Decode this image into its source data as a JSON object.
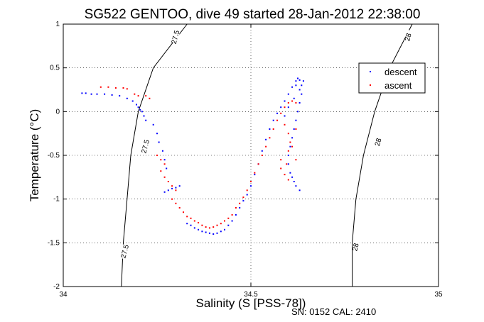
{
  "chart_data": {
    "type": "scatter",
    "title": "SG522 GENTOO, dive 49 started 28-Jan-2012 22:38:00",
    "xlabel": "Salinity (S [PSS-78])",
    "ylabel": "Temperature (°C)",
    "xlim": [
      34,
      35
    ],
    "ylim": [
      -2,
      1
    ],
    "xticks": [
      34,
      34.5,
      35
    ],
    "yticks": [
      -2,
      -1.5,
      -1,
      -0.5,
      0,
      0.5,
      1
    ],
    "grid": true,
    "legend_position": "top-right",
    "isopycnals": [
      {
        "label": "27.5",
        "points": [
          [
            34.33,
            1.0
          ],
          [
            34.24,
            0.5
          ],
          [
            34.2,
            0.0
          ],
          [
            34.18,
            -0.5
          ],
          [
            34.17,
            -1.0
          ],
          [
            34.16,
            -1.5
          ],
          [
            34.155,
            -2.0
          ]
        ]
      },
      {
        "label": "28",
        "points": [
          [
            34.93,
            1.0
          ],
          [
            34.87,
            0.5
          ],
          [
            34.83,
            0.0
          ],
          [
            34.8,
            -0.5
          ],
          [
            34.78,
            -1.0
          ],
          [
            34.77,
            -1.5
          ],
          [
            34.77,
            -2.0
          ]
        ]
      }
    ],
    "isopycnal_label_positions": [
      {
        "label": "27.5",
        "x": 34.3,
        "y": 0.85
      },
      {
        "label": "27.5",
        "x": 34.22,
        "y": -0.4
      },
      {
        "label": "27.5",
        "x": 34.165,
        "y": -1.6
      },
      {
        "label": "28",
        "x": 34.92,
        "y": 0.85
      },
      {
        "label": "28",
        "x": 34.84,
        "y": -0.35
      },
      {
        "label": "28",
        "x": 34.78,
        "y": -1.55
      }
    ],
    "series": [
      {
        "name": "descent",
        "color": "#0000ff",
        "points": [
          [
            34.05,
            0.21
          ],
          [
            34.06,
            0.21
          ],
          [
            34.075,
            0.2
          ],
          [
            34.09,
            0.2
          ],
          [
            34.11,
            0.2
          ],
          [
            34.13,
            0.19
          ],
          [
            34.15,
            0.18
          ],
          [
            34.17,
            0.15
          ],
          [
            34.185,
            0.12
          ],
          [
            34.195,
            0.08
          ],
          [
            34.2,
            0.05
          ],
          [
            34.205,
            0.02
          ],
          [
            34.21,
            0.0
          ],
          [
            34.215,
            -0.05
          ],
          [
            34.22,
            -0.1
          ],
          [
            34.24,
            -0.15
          ],
          [
            34.25,
            -0.25
          ],
          [
            34.255,
            -0.35
          ],
          [
            34.265,
            -0.45
          ],
          [
            34.27,
            -0.55
          ],
          [
            34.275,
            -0.65
          ],
          [
            34.27,
            -0.92
          ],
          [
            34.28,
            -0.9
          ],
          [
            34.29,
            -0.88
          ],
          [
            34.3,
            -0.87
          ],
          [
            34.31,
            -0.85
          ],
          [
            34.33,
            -1.28
          ],
          [
            34.34,
            -1.3
          ],
          [
            34.35,
            -1.33
          ],
          [
            34.36,
            -1.35
          ],
          [
            34.37,
            -1.37
          ],
          [
            34.38,
            -1.38
          ],
          [
            34.39,
            -1.39
          ],
          [
            34.4,
            -1.4
          ],
          [
            34.41,
            -1.39
          ],
          [
            34.42,
            -1.37
          ],
          [
            34.43,
            -1.35
          ],
          [
            34.44,
            -1.3
          ],
          [
            34.45,
            -1.25
          ],
          [
            34.46,
            -1.18
          ],
          [
            34.47,
            -1.1
          ],
          [
            34.48,
            -1.02
          ],
          [
            34.49,
            -0.95
          ],
          [
            34.5,
            -0.85
          ],
          [
            34.51,
            -0.72
          ],
          [
            34.52,
            -0.6
          ],
          [
            34.53,
            -0.45
          ],
          [
            34.54,
            -0.32
          ],
          [
            34.55,
            -0.2
          ],
          [
            34.56,
            -0.1
          ],
          [
            34.57,
            -0.02
          ],
          [
            34.58,
            0.05
          ],
          [
            34.59,
            0.12
          ],
          [
            34.6,
            0.2
          ],
          [
            34.61,
            0.28
          ],
          [
            34.62,
            0.35
          ],
          [
            34.625,
            0.38
          ],
          [
            34.63,
            0.36
          ],
          [
            34.635,
            0.3
          ],
          [
            34.635,
            0.2
          ],
          [
            34.63,
            0.1
          ],
          [
            34.625,
            0.0
          ],
          [
            34.62,
            -0.1
          ],
          [
            34.615,
            -0.2
          ],
          [
            34.61,
            -0.3
          ],
          [
            34.605,
            -0.4
          ],
          [
            34.6,
            -0.5
          ],
          [
            34.6,
            -0.6
          ],
          [
            34.605,
            -0.7
          ],
          [
            34.61,
            -0.75
          ],
          [
            34.615,
            -0.8
          ],
          [
            34.62,
            -0.85
          ],
          [
            34.63,
            -0.9
          ],
          [
            34.62,
            0.3
          ],
          [
            34.63,
            0.25
          ],
          [
            34.64,
            0.35
          ],
          [
            34.615,
            0.15
          ],
          [
            34.6,
            0.05
          ],
          [
            34.59,
            -0.05
          ]
        ]
      },
      {
        "name": "ascent",
        "color": "#ff0000",
        "points": [
          [
            34.1,
            0.28
          ],
          [
            34.12,
            0.28
          ],
          [
            34.14,
            0.27
          ],
          [
            34.16,
            0.27
          ],
          [
            34.17,
            0.26
          ],
          [
            34.19,
            0.2
          ],
          [
            34.2,
            0.18
          ],
          [
            34.22,
            0.18
          ],
          [
            34.23,
            0.15
          ],
          [
            34.25,
            -0.5
          ],
          [
            34.26,
            -0.55
          ],
          [
            34.27,
            -0.6
          ],
          [
            34.26,
            -0.68
          ],
          [
            34.27,
            -0.75
          ],
          [
            34.28,
            -0.8
          ],
          [
            34.29,
            -0.85
          ],
          [
            34.3,
            -0.9
          ],
          [
            34.29,
            -1.0
          ],
          [
            34.3,
            -1.05
          ],
          [
            34.31,
            -1.1
          ],
          [
            34.32,
            -1.15
          ],
          [
            34.33,
            -1.2
          ],
          [
            34.34,
            -1.22
          ],
          [
            34.35,
            -1.25
          ],
          [
            34.36,
            -1.27
          ],
          [
            34.37,
            -1.3
          ],
          [
            34.38,
            -1.32
          ],
          [
            34.39,
            -1.33
          ],
          [
            34.4,
            -1.32
          ],
          [
            34.41,
            -1.3
          ],
          [
            34.42,
            -1.28
          ],
          [
            34.43,
            -1.25
          ],
          [
            34.44,
            -1.22
          ],
          [
            34.45,
            -1.18
          ],
          [
            34.46,
            -1.1
          ],
          [
            34.47,
            -1.05
          ],
          [
            34.48,
            -0.98
          ],
          [
            34.49,
            -0.9
          ],
          [
            34.5,
            -0.8
          ],
          [
            34.51,
            -0.7
          ],
          [
            34.52,
            -0.6
          ],
          [
            34.53,
            -0.5
          ],
          [
            34.54,
            -0.4
          ],
          [
            34.55,
            -0.3
          ],
          [
            34.56,
            -0.2
          ],
          [
            34.57,
            -0.1
          ],
          [
            34.58,
            -0.02
          ],
          [
            34.59,
            0.05
          ],
          [
            34.6,
            0.1
          ],
          [
            34.61,
            0.12
          ],
          [
            34.62,
            0.1
          ],
          [
            34.58,
            -0.55
          ],
          [
            34.58,
            -0.65
          ],
          [
            34.59,
            -0.72
          ],
          [
            34.6,
            -0.78
          ],
          [
            34.595,
            -0.6
          ],
          [
            34.6,
            -0.45
          ],
          [
            34.605,
            -0.35
          ],
          [
            34.6,
            -0.25
          ],
          [
            34.59,
            -0.15
          ],
          [
            34.62,
            -0.2
          ],
          [
            34.61,
            -0.4
          ],
          [
            34.62,
            -0.55
          ]
        ]
      }
    ]
  },
  "legend": {
    "descent": "descent",
    "ascent": "ascent"
  },
  "footer": {
    "text": "SN: 0152  CAL: 2410"
  }
}
